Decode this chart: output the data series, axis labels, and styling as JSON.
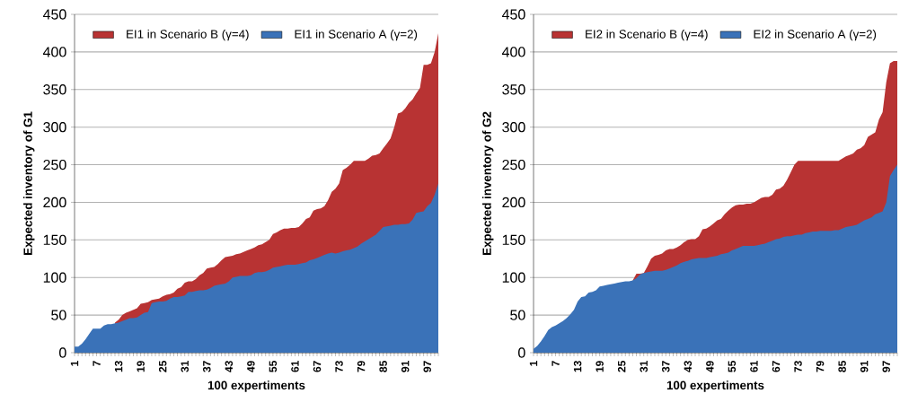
{
  "chart_data": [
    {
      "type": "area",
      "xlabel": "100 expertiments",
      "ylabel": "Expected inventory of G1",
      "grid": "y",
      "legend": "top",
      "ylim": [
        0,
        450
      ],
      "yticks": [
        0,
        50,
        100,
        150,
        200,
        250,
        300,
        350,
        400,
        450
      ],
      "categories": [
        "1",
        null,
        null,
        null,
        null,
        null,
        "7",
        null,
        null,
        null,
        null,
        null,
        "13",
        null,
        null,
        null,
        null,
        null,
        "19",
        null,
        null,
        null,
        null,
        null,
        "25",
        null,
        null,
        null,
        null,
        null,
        "31",
        null,
        null,
        null,
        null,
        null,
        "37",
        null,
        null,
        null,
        null,
        null,
        "43",
        null,
        null,
        null,
        null,
        null,
        "49",
        null,
        null,
        null,
        null,
        null,
        "55",
        null,
        null,
        null,
        null,
        null,
        "61",
        null,
        null,
        null,
        null,
        null,
        "67",
        null,
        null,
        null,
        null,
        null,
        "73",
        null,
        null,
        null,
        null,
        null,
        "79",
        null,
        null,
        null,
        null,
        null,
        "85",
        null,
        null,
        null,
        null,
        null,
        "91",
        null,
        null,
        null,
        null,
        null,
        "97",
        null,
        null,
        null
      ],
      "series": [
        {
          "name": "EI1 in Scenario B (γ=4)",
          "color": "#b83333",
          "values": [
            null,
            null,
            null,
            null,
            null,
            null,
            null,
            null,
            null,
            null,
            null,
            40,
            44,
            50,
            53,
            55,
            57,
            59,
            65,
            66,
            67,
            70,
            71,
            72,
            75,
            77,
            78,
            80,
            85,
            87,
            93,
            95,
            95,
            98,
            103,
            106,
            112,
            113,
            114,
            118,
            123,
            127,
            128,
            129,
            131,
            132,
            134,
            136,
            138,
            140,
            143,
            144,
            147,
            150,
            158,
            160,
            163,
            165,
            165,
            166,
            166,
            167,
            172,
            178,
            180,
            189,
            191,
            192,
            195,
            203,
            214,
            218,
            225,
            243,
            246,
            250,
            255,
            255,
            255,
            255,
            258,
            262,
            263,
            265,
            272,
            278,
            285,
            300,
            318,
            320,
            325,
            332,
            337,
            345,
            352,
            383,
            383,
            385,
            400,
            425
          ]
        },
        {
          "name": "EI1  in Scenario A (γ=2)",
          "color": "#3a72b8",
          "values": [
            8,
            8,
            12,
            18,
            25,
            32,
            32,
            32,
            36,
            38,
            38,
            39,
            40,
            42,
            44,
            46,
            46,
            47,
            50,
            53,
            54,
            66,
            67,
            68,
            68,
            69,
            72,
            74,
            74,
            75,
            76,
            81,
            81,
            82,
            83,
            83,
            84,
            86,
            89,
            90,
            91,
            92,
            95,
            100,
            101,
            102,
            102,
            102,
            103,
            106,
            107,
            107,
            108,
            110,
            113,
            114,
            115,
            116,
            117,
            117,
            117,
            118,
            119,
            120,
            123,
            124,
            126,
            128,
            130,
            132,
            133,
            132,
            133,
            135,
            136,
            137,
            139,
            141,
            145,
            148,
            151,
            154,
            157,
            162,
            167,
            168,
            169,
            170,
            170,
            171,
            171,
            172,
            177,
            186,
            187,
            188,
            195,
            199,
            210,
            225
          ]
        }
      ]
    },
    {
      "type": "area",
      "xlabel": "100 expertiments",
      "ylabel": "Expected inventory of G2",
      "grid": "y",
      "legend": "top",
      "ylim": [
        0,
        450
      ],
      "yticks": [
        0,
        50,
        100,
        150,
        200,
        250,
        300,
        350,
        400,
        450
      ],
      "categories": [
        "1",
        null,
        null,
        null,
        null,
        null,
        "7",
        null,
        null,
        null,
        null,
        null,
        "13",
        null,
        null,
        null,
        null,
        null,
        "19",
        null,
        null,
        null,
        null,
        null,
        "25",
        null,
        null,
        null,
        null,
        null,
        "31",
        null,
        null,
        null,
        null,
        null,
        "37",
        null,
        null,
        null,
        null,
        null,
        "43",
        null,
        null,
        null,
        null,
        null,
        "49",
        null,
        null,
        null,
        null,
        null,
        "55",
        null,
        null,
        null,
        null,
        null,
        "61",
        null,
        null,
        null,
        null,
        null,
        "67",
        null,
        null,
        null,
        null,
        null,
        "73",
        null,
        null,
        null,
        null,
        null,
        "79",
        null,
        null,
        null,
        null,
        null,
        "85",
        null,
        null,
        null,
        null,
        null,
        "91",
        null,
        null,
        null,
        null,
        null,
        "97",
        null,
        null,
        null
      ],
      "series": [
        {
          "name": "EI2 in Scenario B (γ=4)",
          "color": "#b83333",
          "values": [
            null,
            null,
            null,
            null,
            null,
            null,
            null,
            null,
            null,
            null,
            null,
            null,
            null,
            null,
            null,
            null,
            null,
            null,
            null,
            null,
            null,
            null,
            null,
            null,
            null,
            null,
            null,
            96,
            105,
            105,
            106,
            115,
            125,
            129,
            130,
            132,
            136,
            138,
            138,
            140,
            143,
            147,
            150,
            151,
            151,
            155,
            164,
            165,
            168,
            172,
            176,
            178,
            184,
            189,
            193,
            196,
            197,
            197,
            198,
            198,
            200,
            203,
            206,
            207,
            207,
            210,
            217,
            218,
            222,
            230,
            240,
            250,
            255,
            255,
            255,
            255,
            255,
            255,
            255,
            255,
            255,
            255,
            255,
            255,
            258,
            261,
            263,
            265,
            270,
            272,
            276,
            287,
            290,
            293,
            310,
            320,
            360,
            385,
            388,
            388
          ]
        },
        {
          "name": "EI2  in Scenario A (γ=2)",
          "color": "#3a72b8",
          "values": [
            5,
            9,
            15,
            22,
            30,
            34,
            36,
            39,
            42,
            46,
            51,
            57,
            68,
            74,
            75,
            80,
            81,
            83,
            88,
            89,
            90,
            91,
            92,
            93,
            94,
            95,
            95,
            96,
            99,
            104,
            106,
            107,
            108,
            109,
            109,
            109,
            110,
            112,
            114,
            116,
            119,
            121,
            122,
            124,
            125,
            126,
            126,
            126,
            127,
            128,
            129,
            131,
            132,
            133,
            136,
            138,
            140,
            142,
            142,
            142,
            142,
            143,
            144,
            145,
            147,
            149,
            151,
            152,
            154,
            155,
            155,
            156,
            157,
            157,
            159,
            160,
            161,
            161,
            162,
            162,
            162,
            162,
            163,
            163,
            165,
            167,
            168,
            169,
            170,
            173,
            176,
            178,
            180,
            184,
            186,
            188,
            200,
            235,
            243,
            250
          ]
        }
      ]
    }
  ]
}
